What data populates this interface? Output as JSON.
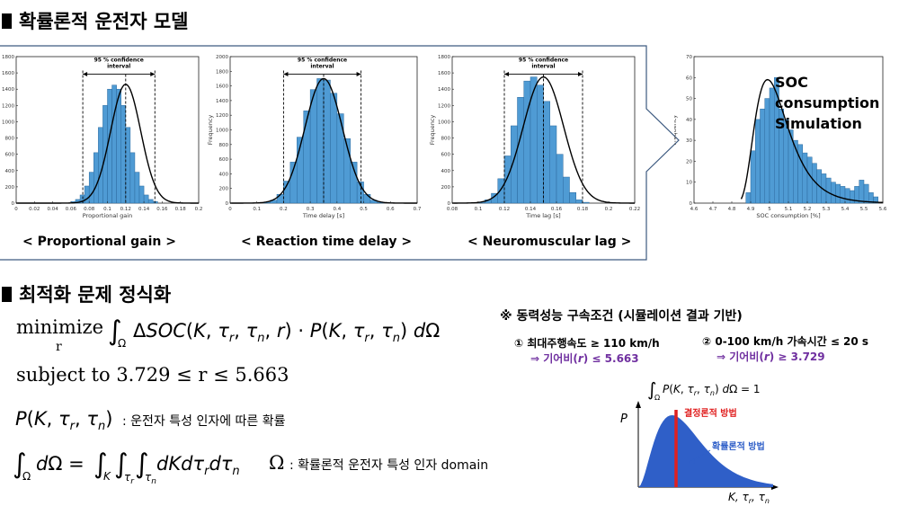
{
  "section1": {
    "title": "확률론적 운전자 모델"
  },
  "section2": {
    "title": "최적화 문제 정식화"
  },
  "charts": {
    "annotation": "95 % confidence interval",
    "annotation_line1": "95 % confidence",
    "annotation_line2": "interval",
    "soc_caption_1": "SOC",
    "soc_caption_2": "consumption",
    "soc_caption_3": "Simulation"
  },
  "labels": {
    "proportional": "< Proportional gain >",
    "reaction": "< Reaction time delay >",
    "neuromuscular": "< Neuromuscular lag >"
  },
  "chart_data": [
    {
      "type": "bar",
      "name": "proportional",
      "xlabel": "Proportional gain",
      "ylabel": "",
      "xlim": [
        0,
        0.2
      ],
      "ylim": [
        0,
        1800
      ],
      "xticks": [
        "0",
        "0.02",
        "0.04",
        "0.06",
        "0.08",
        "0.1",
        "0.12",
        "0.14",
        "0.16",
        "0.18",
        "0.2"
      ],
      "yticks": [
        "0",
        "200",
        "400",
        "600",
        "800",
        "1000",
        "1200",
        "1400",
        "1600",
        "1800"
      ],
      "bin_start": 0.06,
      "bin_width": 0.005,
      "values": [
        20,
        45,
        100,
        210,
        380,
        620,
        930,
        1200,
        1400,
        1450,
        1400,
        1200,
        930,
        620,
        380,
        210,
        100,
        45,
        20
      ],
      "fit": {
        "mean": 0.12,
        "std": 0.0165,
        "peak": 1460
      },
      "ci": [
        0.073,
        0.152
      ]
    },
    {
      "type": "bar",
      "name": "reaction",
      "xlabel": "Time delay [s]",
      "ylabel": "Frequency",
      "xlim": [
        0,
        0.7
      ],
      "ylim": [
        0,
        2000
      ],
      "xticks": [
        "0",
        "0.1",
        "0.2",
        "0.3",
        "0.4",
        "0.5",
        "0.6",
        "0.7"
      ],
      "yticks": [
        "0",
        "200",
        "400",
        "600",
        "800",
        "1000",
        "1200",
        "1400",
        "1600",
        "1800",
        "2000"
      ],
      "bin_start": 0.1,
      "bin_width": 0.025,
      "values": [
        0,
        10,
        40,
        120,
        300,
        560,
        900,
        1260,
        1550,
        1700,
        1680,
        1500,
        1220,
        880,
        560,
        290,
        120,
        40,
        10,
        0
      ],
      "fit": {
        "mean": 0.35,
        "std": 0.07,
        "peak": 1700
      },
      "ci": [
        0.2,
        0.49
      ]
    },
    {
      "type": "bar",
      "name": "neuromuscular",
      "xlabel": "Time lag [s]",
      "ylabel": "Frequency",
      "xlim": [
        0.08,
        0.22
      ],
      "ylim": [
        0,
        1800
      ],
      "xticks": [
        "0.08",
        "0.1",
        "0.12",
        "0.14",
        "0.16",
        "0.18",
        "0.2",
        "0.22"
      ],
      "yticks": [
        "0",
        "200",
        "400",
        "600",
        "800",
        "1000",
        "1200",
        "1400",
        "1600",
        "1800"
      ],
      "bin_start": 0.1,
      "bin_width": 0.005,
      "values": [
        10,
        40,
        120,
        300,
        580,
        950,
        1300,
        1500,
        1550,
        1450,
        1250,
        950,
        600,
        320,
        130,
        40,
        10,
        0
      ],
      "fit": {
        "mean": 0.15,
        "std": 0.0155,
        "peak": 1550
      },
      "ci": [
        0.12,
        0.18
      ]
    },
    {
      "type": "bar",
      "name": "soc",
      "xlabel": "SOC consumption [%]",
      "ylabel": "Frequency",
      "xlim": [
        4.6,
        5.6
      ],
      "ylim": [
        0,
        70
      ],
      "xticks": [
        "4.6",
        "4.7",
        "4.8",
        "4.9",
        "5",
        "5.1",
        "5.2",
        "5.3",
        "5.4",
        "5.5",
        "5.6"
      ],
      "yticks": [
        "0",
        "10",
        "20",
        "30",
        "40",
        "50",
        "60",
        "70"
      ],
      "bin_start": 4.875,
      "bin_width": 0.025,
      "values": [
        5,
        25,
        40,
        45,
        50,
        55,
        60,
        45,
        40,
        35,
        30,
        28,
        24,
        22,
        19,
        16,
        14,
        12,
        10,
        9,
        8,
        7,
        6,
        8,
        11,
        9,
        5,
        3
      ]
    }
  ],
  "formulas": {
    "objective_min": "minimize",
    "objective_sub": "r",
    "objective_body": "∫",
    "objective_sub_omega": "Ω",
    "objective_expr": "ΔSOC(K, τ",
    "subject_text": "subject to 3.729 ≤ r ≤ 5.663",
    "prob_note": ": 운전자 특성 인자에 따른 확률",
    "domain_note": ": 확률론적 운전자 특성 인자 domain",
    "omega": "Ω"
  },
  "constraints": {
    "title": "※ 동력성능 구속조건 (시뮬레이션 결과 기반)",
    "c1": "① 최대주행속도 ≥ 110 km/h",
    "c1_sub_pre": "⇒ 기어비(",
    "c1_sub_post": ") ≤ 5.663",
    "c2": "② 0-100 km/h 가속시간 ≤ 20 s",
    "c2_sub_pre": "⇒ 기어비(",
    "c2_sub_post": ") ≥ 3.729",
    "r": "r"
  },
  "mini_plot": {
    "integral": "P(K, τr, τn) dΩ = 1",
    "ylabel": "P",
    "xlabel": "K, τr, τn",
    "deterministic": "결정론적 방법",
    "stochastic": "확률론적 방법",
    "deterministic_color": "#e02020",
    "stochastic_color": "#2f5fc8"
  },
  "colors": {
    "bar": "#4f9bd4",
    "bar_edge": "#2c6a9e",
    "frame": "#3d5a80"
  }
}
